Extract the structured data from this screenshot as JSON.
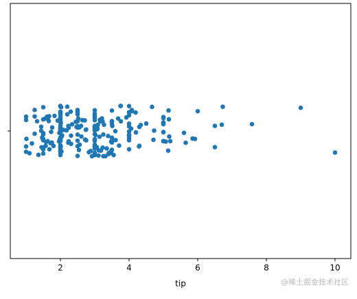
{
  "chart_data": {
    "type": "strip",
    "xlabel": "tip",
    "color": "#1f77b4",
    "xlim": [
      0.54,
      10.46
    ],
    "xticks": [
      2,
      4,
      6,
      8,
      10
    ],
    "values": [
      1.01,
      1.66,
      3.5,
      3.31,
      3.61,
      4.71,
      2,
      3.12,
      1.96,
      3.23,
      1.71,
      5,
      1.57,
      3,
      3.02,
      3.92,
      1.67,
      3.71,
      3.5,
      3.35,
      4.08,
      2.75,
      2.23,
      7.58,
      3.18,
      2.34,
      2,
      2,
      4.3,
      3,
      1.45,
      2.5,
      3,
      2.45,
      3.27,
      3.6,
      2,
      3.07,
      2.31,
      5,
      2.24,
      2.54,
      3.06,
      1.32,
      5.6,
      3,
      5,
      6,
      2.05,
      3,
      2.5,
      2.6,
      5.2,
      1.56,
      4.34,
      3.51,
      3,
      1.5,
      1.76,
      6.73,
      3.21,
      2,
      1.98,
      3.76,
      2.64,
      3.15,
      2.47,
      1,
      2.01,
      2.09,
      1.97,
      3,
      3.14,
      5,
      2.2,
      1.25,
      3.08,
      4,
      3,
      2.71,
      3,
      3.4,
      1.83,
      5,
      2.03,
      5.17,
      2,
      4,
      5.85,
      3,
      3,
      3.5,
      1,
      4.3,
      3.25,
      4.73,
      4,
      1.5,
      3,
      1.5,
      2.5,
      3,
      2.5,
      3.48,
      4.08,
      1.64,
      4.06,
      4.29,
      3.76,
      4,
      3,
      1,
      4,
      2.55,
      4,
      3.5,
      5.07,
      1.5,
      1.8,
      2.92,
      2.31,
      1.68,
      2.5,
      2,
      2.52,
      4.2,
      1.48,
      2,
      2,
      2.18,
      1.5,
      2.83,
      1.5,
      2,
      3.25,
      1.25,
      2,
      2,
      2,
      2.75,
      3.5,
      6.7,
      5,
      5,
      2.3,
      1.5,
      1.36,
      1.63,
      1.73,
      2,
      2.5,
      2,
      2.74,
      2,
      2,
      5.14,
      5,
      3.75,
      2.61,
      2,
      3.5,
      2.5,
      2,
      2,
      3,
      3.48,
      2.24,
      4.5,
      1.61,
      2,
      10,
      3.16,
      5.15,
      3.18,
      4,
      3.11,
      2,
      2,
      4,
      3.55,
      3.68,
      5.65,
      3.5,
      6.5,
      3,
      5,
      3.5,
      2,
      3.5,
      4,
      1.5,
      4.19,
      2.56,
      2.02,
      4,
      1.44,
      2,
      5,
      2,
      2,
      4,
      2.01,
      2,
      2.5,
      4,
      3.23,
      3.41,
      3,
      2.03,
      2.23,
      2,
      5.16,
      9,
      2.5,
      6.5,
      1.1,
      3,
      1.5,
      1.44,
      3.09,
      2.2,
      3.48,
      1.92,
      3,
      1.58,
      2.5,
      2,
      3,
      2.72,
      2.88,
      2,
      3,
      3.39,
      1.47,
      3,
      1.25,
      1,
      1.17,
      4.67,
      5.92,
      2,
      2,
      1.75,
      3
    ]
  },
  "watermark": "@稀土掘金技术社区"
}
